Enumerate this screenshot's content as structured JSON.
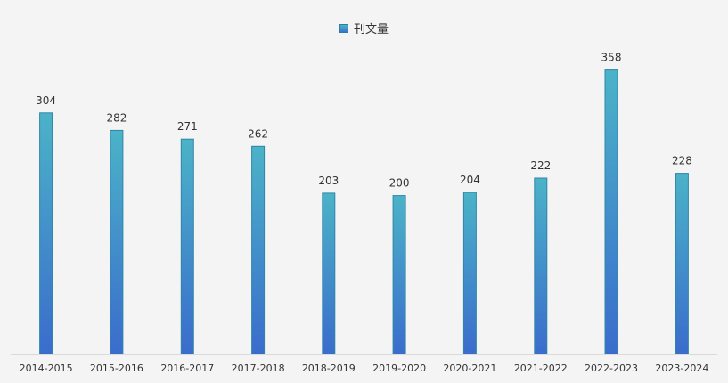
{
  "chart_data": {
    "type": "bar",
    "series": [
      {
        "name": "刊文量",
        "values": [
          304,
          282,
          271,
          262,
          203,
          200,
          204,
          222,
          358,
          228
        ]
      }
    ],
    "categories": [
      "2014-2015",
      "2015-2016",
      "2016-2017",
      "2017-2018",
      "2018-2019",
      "2019-2020",
      "2020-2021",
      "2021-2022",
      "2022-2023",
      "2023-2024"
    ],
    "ylim": [
      0,
      400
    ],
    "grid": false,
    "legend": "top-center",
    "colors": {
      "bar_top": "#4bb3c8",
      "bar_bottom": "#3a6ccc",
      "bar_stroke": "#2f86a8",
      "axis": "#bfbfbf",
      "text": "#333333",
      "background": "#f4f4f4"
    }
  }
}
